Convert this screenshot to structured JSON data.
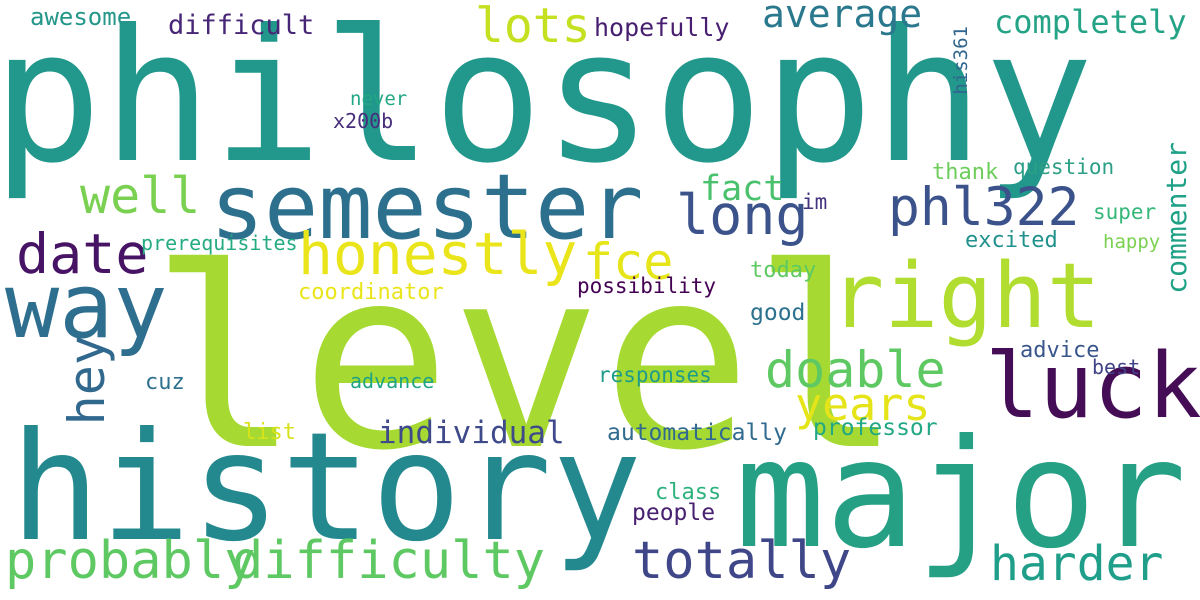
{
  "words": {
    "philosophy": {
      "text": "philosophy",
      "color": "#21988b"
    },
    "level": {
      "text": "level",
      "color": "#a6da32"
    },
    "history": {
      "text": "history",
      "color": "#23898e"
    },
    "major": {
      "text": "major",
      "color": "#25a085"
    },
    "semester": {
      "text": "semester",
      "color": "#2d708e"
    },
    "right": {
      "text": "right",
      "color": "#b0dd2f"
    },
    "way": {
      "text": "way",
      "color": "#2e6e8e"
    },
    "luck": {
      "text": "luck",
      "color": "#440d55"
    },
    "honestly": {
      "text": "honestly",
      "color": "#eae51a"
    },
    "fce": {
      "text": "fce",
      "color": "#e6e51a"
    },
    "long": {
      "text": "long",
      "color": "#3b528b"
    },
    "phl322": {
      "text": "phl322",
      "color": "#3b528b"
    },
    "date": {
      "text": "date",
      "color": "#471365"
    },
    "well": {
      "text": "well",
      "color": "#7ad151"
    },
    "lots": {
      "text": "lots",
      "color": "#c5e021"
    },
    "average": {
      "text": "average",
      "color": "#2a788e"
    },
    "completely": {
      "text": "completely",
      "color": "#25a386"
    },
    "difficult": {
      "text": "difficult",
      "color": "#482677"
    },
    "hopefully": {
      "text": "hopefully",
      "color": "#481f70"
    },
    "awesome": {
      "text": "awesome",
      "color": "#24968a"
    },
    "fact": {
      "text": "fact",
      "color": "#4ac16d"
    },
    "thank": {
      "text": "thank",
      "color": "#6ccd5a"
    },
    "question": {
      "text": "question",
      "color": "#2c9f86"
    },
    "super": {
      "text": "super",
      "color": "#35b779"
    },
    "excited": {
      "text": "excited",
      "color": "#21918c"
    },
    "happy": {
      "text": "happy",
      "color": "#7ad151"
    },
    "im": {
      "text": "im",
      "color": "#46337e"
    },
    "never": {
      "text": "never",
      "color": "#22a785"
    },
    "x200b": {
      "text": "x200b",
      "color": "#472d7b"
    },
    "his361": {
      "text": "his361",
      "color": "#31668e"
    },
    "commenter": {
      "text": "commenter",
      "color": "#1fa187"
    },
    "prerequisites": {
      "text": "prerequisites",
      "color": "#25ab82"
    },
    "coordinator": {
      "text": "coordinator",
      "color": "#eae51a"
    },
    "possibility": {
      "text": "possibility",
      "color": "#440154"
    },
    "today": {
      "text": "today",
      "color": "#5ec962"
    },
    "good": {
      "text": "good",
      "color": "#2c728e"
    },
    "doable": {
      "text": "doable",
      "color": "#5ec962"
    },
    "years": {
      "text": "years",
      "color": "#e4e419"
    },
    "advice": {
      "text": "advice",
      "color": "#39568c"
    },
    "best": {
      "text": "best",
      "color": "#414487"
    },
    "hey": {
      "text": "hey",
      "color": "#31688e"
    },
    "cuz": {
      "text": "cuz",
      "color": "#2d718e"
    },
    "advance": {
      "text": "advance",
      "color": "#20a486"
    },
    "responses": {
      "text": "responses",
      "color": "#1e9c89"
    },
    "individual": {
      "text": "individual",
      "color": "#3e4a89"
    },
    "list": {
      "text": "list",
      "color": "#d8e219"
    },
    "automatically": {
      "text": "automatically",
      "color": "#306a8e"
    },
    "professor": {
      "text": "professor",
      "color": "#22a884"
    },
    "class": {
      "text": "class",
      "color": "#2db27d"
    },
    "people": {
      "text": "people",
      "color": "#482071"
    },
    "probably": {
      "text": "probably",
      "color": "#5ec962"
    },
    "difficulty": {
      "text": "difficulty",
      "color": "#5ec962"
    },
    "totally": {
      "text": "totally",
      "color": "#3f4788"
    },
    "harder": {
      "text": "harder",
      "color": "#1f9e89"
    }
  },
  "background": "#ffffff"
}
